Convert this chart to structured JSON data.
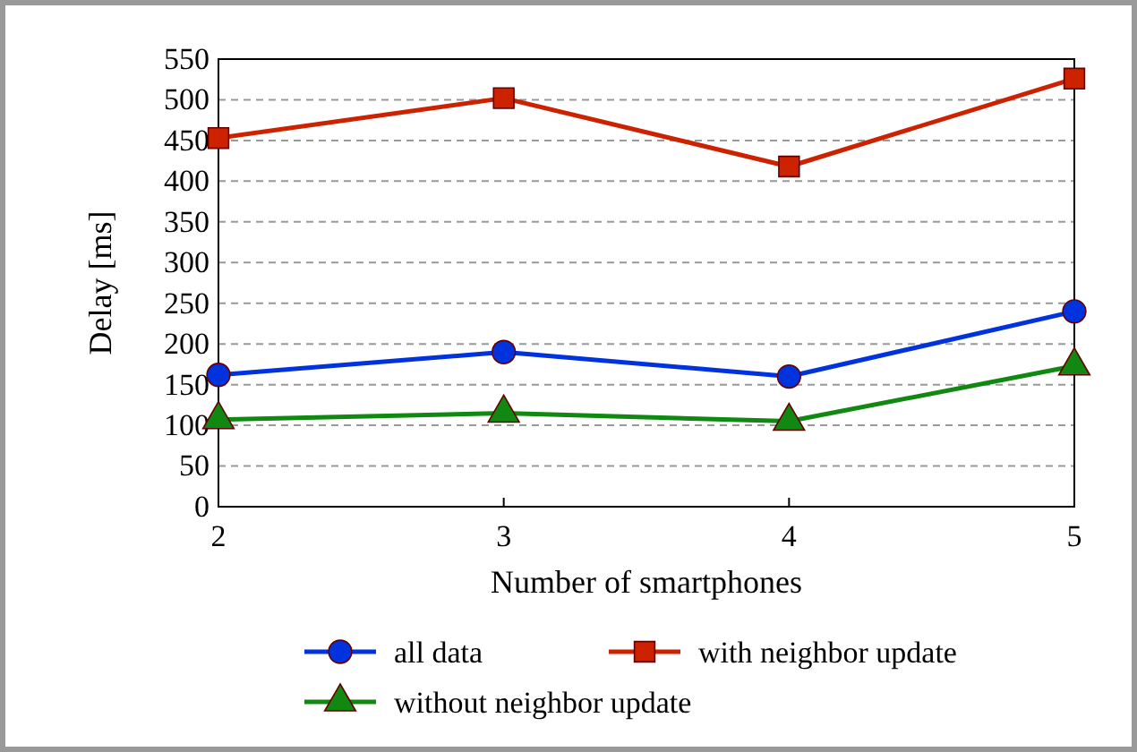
{
  "chart_data": {
    "type": "line",
    "xlabel": "Number of smartphones",
    "ylabel": "Delay [ms]",
    "x": [
      2,
      3,
      4,
      5
    ],
    "xlim": [
      2,
      5
    ],
    "xticks": [
      2,
      3,
      4,
      5
    ],
    "ylim": [
      0,
      550
    ],
    "yticks": [
      0,
      50,
      100,
      150,
      200,
      250,
      300,
      350,
      400,
      450,
      500,
      550
    ],
    "grid": "y",
    "legend": "bottom",
    "line_style": "solid",
    "series": [
      {
        "name": "all data",
        "color": "#0033dd",
        "marker": "circle",
        "values": [
          162,
          190,
          160,
          240
        ]
      },
      {
        "name": "with neighbor update",
        "color": "#cc2200",
        "marker": "square",
        "values": [
          453,
          502,
          418,
          526
        ]
      },
      {
        "name": "without neighbor update",
        "color": "#118811",
        "marker": "triangle",
        "values": [
          107,
          115,
          105,
          173
        ]
      }
    ]
  }
}
